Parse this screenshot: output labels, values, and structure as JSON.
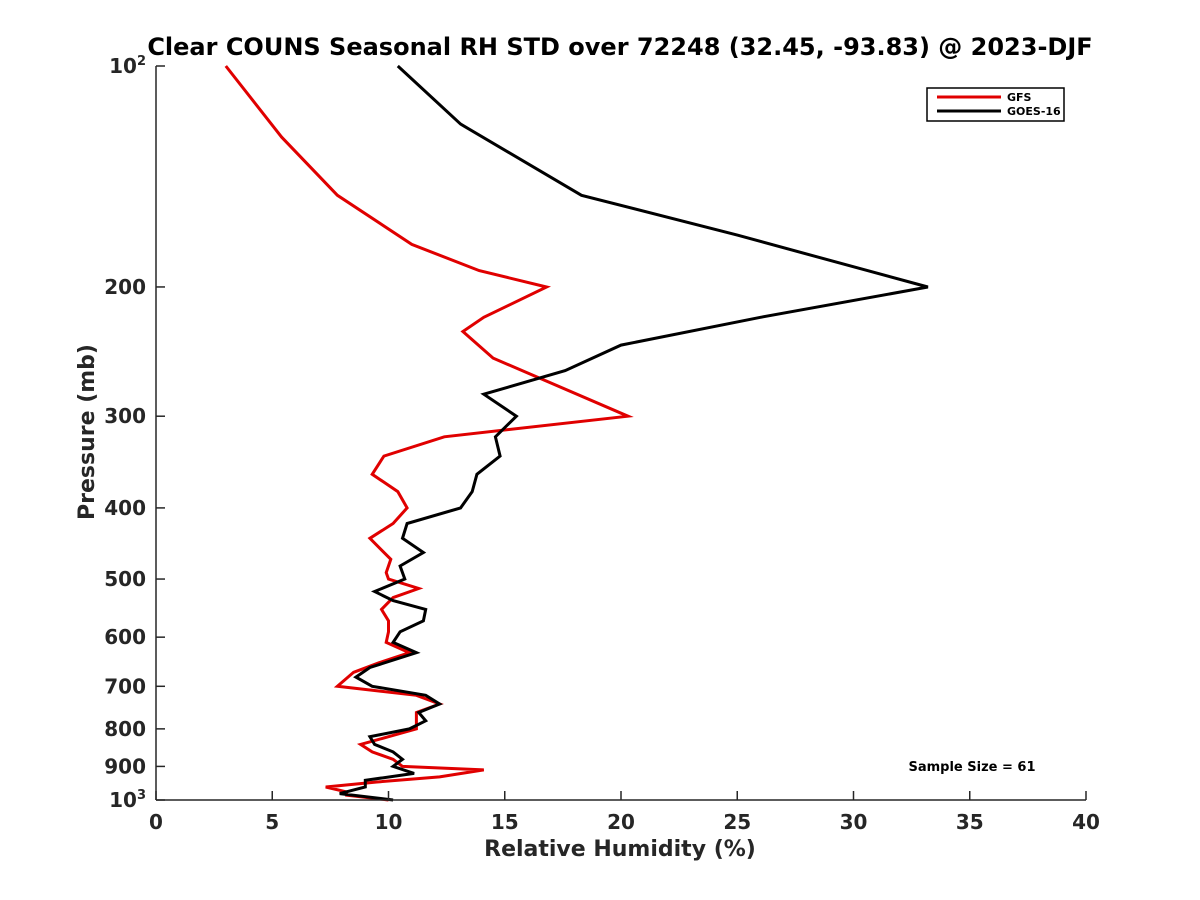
{
  "chart_data": {
    "type": "line",
    "title": "Clear COUNS Seasonal RH STD over 72248 (32.45, -93.83) @ 2023-DJF",
    "xlabel": "Relative Humidity (%)",
    "ylabel": "Pressure (mb)",
    "xlim": [
      0,
      40
    ],
    "ylim": [
      100,
      1000
    ],
    "yscale": "log",
    "y_reversed": true,
    "x_ticks": [
      "0",
      "5",
      "10",
      "15",
      "20",
      "25",
      "30",
      "35",
      "40"
    ],
    "y_ticks": [
      {
        "value": 100,
        "base": "10",
        "exp": "2"
      },
      {
        "value": 200,
        "base": "200",
        "exp": ""
      },
      {
        "value": 300,
        "base": "300",
        "exp": ""
      },
      {
        "value": 400,
        "base": "400",
        "exp": ""
      },
      {
        "value": 500,
        "base": "500",
        "exp": ""
      },
      {
        "value": 600,
        "base": "600",
        "exp": ""
      },
      {
        "value": 700,
        "base": "700",
        "exp": ""
      },
      {
        "value": 800,
        "base": "800",
        "exp": ""
      },
      {
        "value": 900,
        "base": "900",
        "exp": ""
      },
      {
        "value": 1000,
        "base": "10",
        "exp": "3"
      }
    ],
    "legend_position": "top-right",
    "series": [
      {
        "name": "GFS",
        "color": "#e00000",
        "points": [
          [
            3.0,
            100
          ],
          [
            5.4,
            125
          ],
          [
            7.8,
            150
          ],
          [
            11.0,
            175
          ],
          [
            13.9,
            190
          ],
          [
            16.8,
            200
          ],
          [
            14.1,
            220
          ],
          [
            13.2,
            230
          ],
          [
            14.5,
            250
          ],
          [
            20.3,
            300
          ],
          [
            12.4,
            320
          ],
          [
            9.8,
            340
          ],
          [
            9.3,
            360
          ],
          [
            10.4,
            380
          ],
          [
            10.8,
            400
          ],
          [
            10.2,
            420
          ],
          [
            9.2,
            440
          ],
          [
            10.1,
            470
          ],
          [
            9.9,
            490
          ],
          [
            10.0,
            500
          ],
          [
            11.3,
            515
          ],
          [
            10.2,
            530
          ],
          [
            9.7,
            550
          ],
          [
            10.0,
            570
          ],
          [
            10.0,
            590
          ],
          [
            9.9,
            610
          ],
          [
            10.9,
            630
          ],
          [
            9.6,
            650
          ],
          [
            8.5,
            670
          ],
          [
            7.8,
            700
          ],
          [
            11.2,
            720
          ],
          [
            12.2,
            740
          ],
          [
            11.2,
            760
          ],
          [
            11.2,
            780
          ],
          [
            11.2,
            800
          ],
          [
            10.0,
            820
          ],
          [
            8.8,
            840
          ],
          [
            9.3,
            860
          ],
          [
            10.2,
            880
          ],
          [
            10.6,
            900
          ],
          [
            14.1,
            910
          ],
          [
            12.2,
            930
          ],
          [
            9.5,
            945
          ],
          [
            7.3,
            960
          ],
          [
            8.2,
            975
          ],
          [
            8.2,
            985
          ],
          [
            10.0,
            1000
          ]
        ]
      },
      {
        "name": "GOES-16",
        "color": "#000000",
        "points": [
          [
            10.4,
            100
          ],
          [
            13.1,
            120
          ],
          [
            18.3,
            150
          ],
          [
            25.0,
            170
          ],
          [
            30.6,
            190
          ],
          [
            33.2,
            200
          ],
          [
            26.0,
            220
          ],
          [
            20.0,
            240
          ],
          [
            17.6,
            260
          ],
          [
            14.1,
            280
          ],
          [
            15.5,
            300
          ],
          [
            14.6,
            320
          ],
          [
            14.8,
            340
          ],
          [
            13.8,
            360
          ],
          [
            13.6,
            380
          ],
          [
            13.1,
            400
          ],
          [
            10.8,
            420
          ],
          [
            10.6,
            440
          ],
          [
            11.5,
            460
          ],
          [
            10.5,
            480
          ],
          [
            10.7,
            500
          ],
          [
            9.4,
            520
          ],
          [
            10.2,
            535
          ],
          [
            11.6,
            550
          ],
          [
            11.5,
            570
          ],
          [
            10.5,
            590
          ],
          [
            10.2,
            610
          ],
          [
            11.2,
            630
          ],
          [
            9.2,
            660
          ],
          [
            8.6,
            680
          ],
          [
            9.3,
            700
          ],
          [
            11.6,
            720
          ],
          [
            12.2,
            740
          ],
          [
            11.3,
            760
          ],
          [
            11.6,
            780
          ],
          [
            10.9,
            800
          ],
          [
            9.2,
            820
          ],
          [
            9.4,
            840
          ],
          [
            10.2,
            860
          ],
          [
            10.6,
            880
          ],
          [
            10.2,
            900
          ],
          [
            11.1,
            920
          ],
          [
            9.0,
            940
          ],
          [
            9.0,
            960
          ],
          [
            7.9,
            980
          ],
          [
            10.2,
            1000
          ]
        ]
      }
    ],
    "annotation": "Sample Size = 61"
  }
}
